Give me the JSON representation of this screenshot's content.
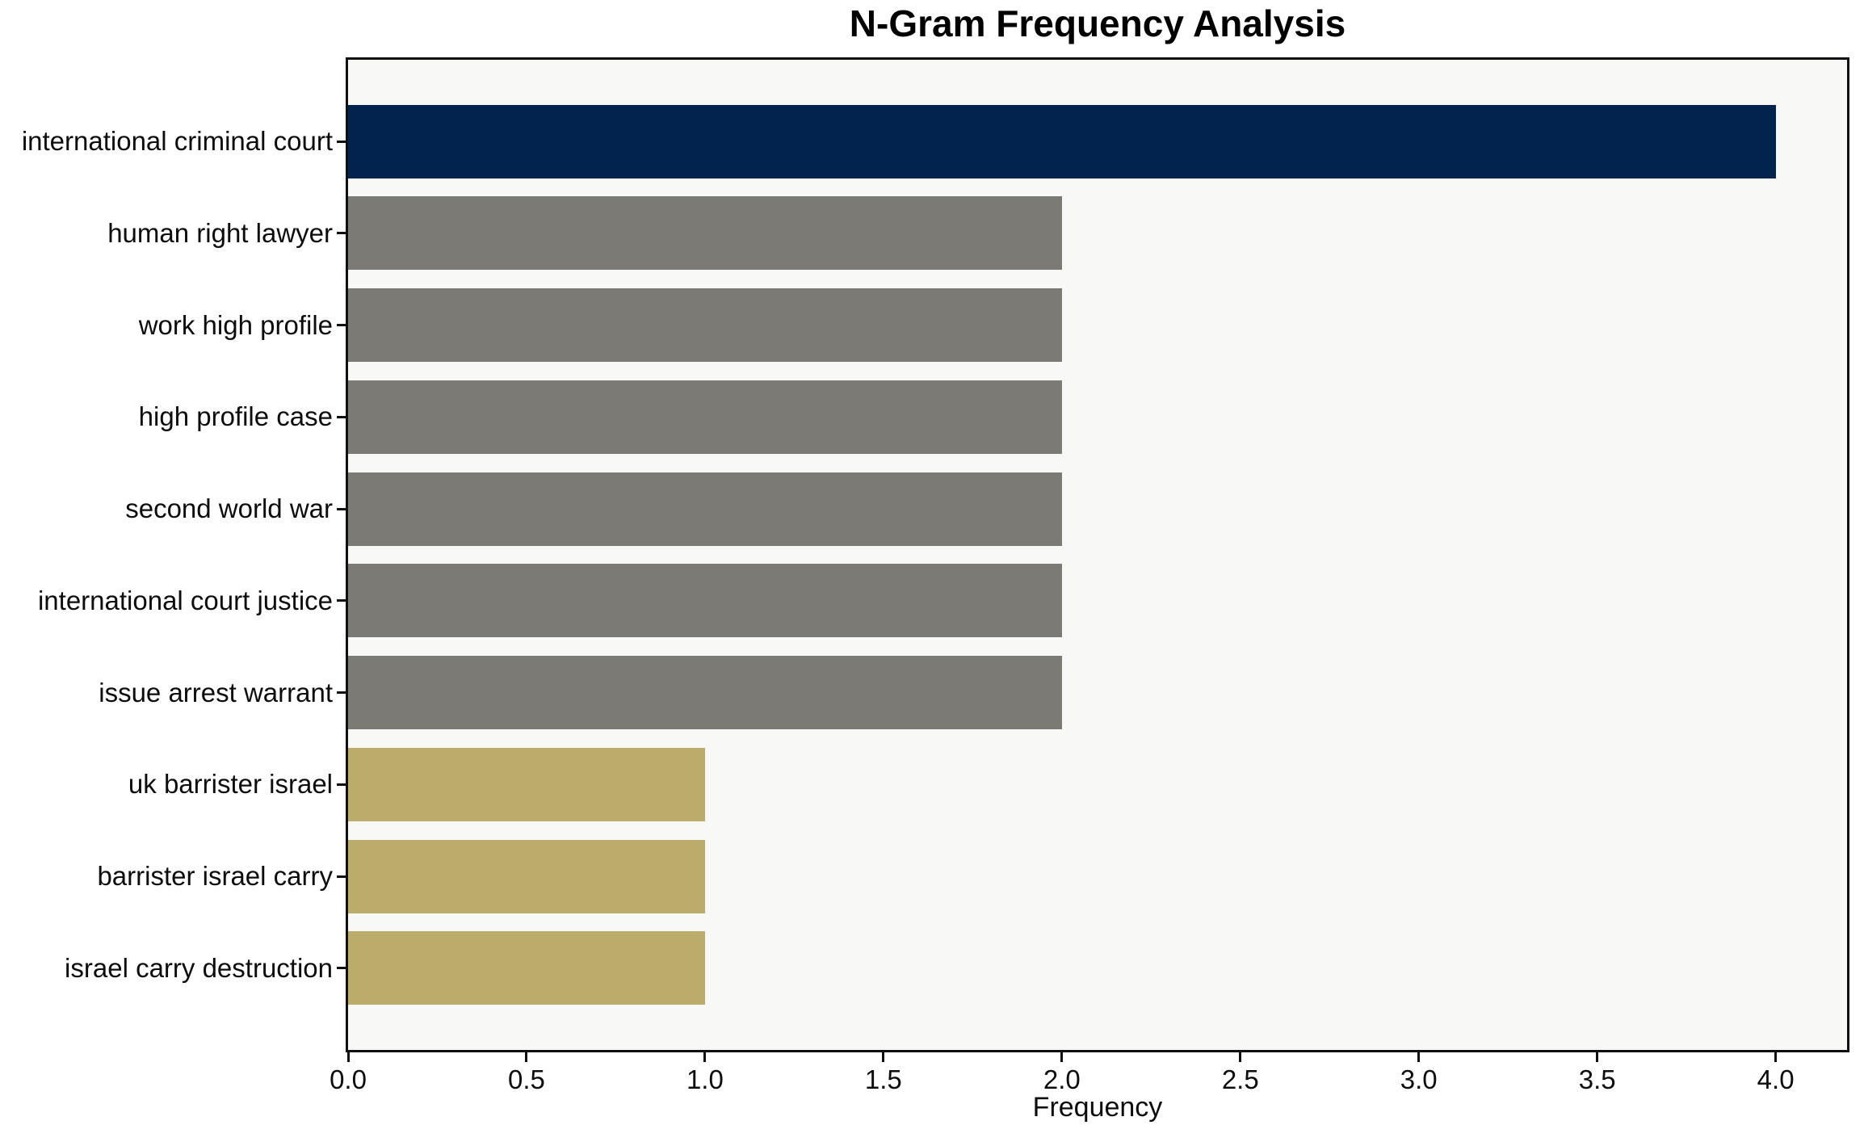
{
  "chart_data": {
    "type": "bar",
    "orientation": "horizontal",
    "title": "N-Gram Frequency Analysis",
    "xlabel": "Frequency",
    "ylabel": "",
    "categories": [
      "international criminal court",
      "human right lawyer",
      "work high profile",
      "high profile case",
      "second world war",
      "international court justice",
      "issue arrest warrant",
      "uk barrister israel",
      "barrister israel carry",
      "israel carry destruction"
    ],
    "values": [
      4,
      2,
      2,
      2,
      2,
      2,
      2,
      1,
      1,
      1
    ],
    "bar_colors": [
      "#02234d",
      "#7b7a75",
      "#7b7a75",
      "#7b7a75",
      "#7b7a75",
      "#7b7a75",
      "#7b7a75",
      "#bbac6b",
      "#bbac6b",
      "#bbac6b"
    ],
    "xlim": [
      0,
      4.2
    ],
    "x_ticks": [
      0,
      0.5,
      1,
      1.5,
      2,
      2.5,
      3,
      3.5,
      4
    ],
    "x_tick_labels": [
      "0.0",
      "0.5",
      "1.0",
      "1.5",
      "2.0",
      "2.5",
      "3.0",
      "3.5",
      "4.0"
    ],
    "bar_width_fraction": 0.8,
    "grid": false,
    "legend": null,
    "plot_background": "#f8f8f7",
    "outer_background": "#ffffff",
    "axis_color": "#101010",
    "text_color": "#0d0d0d"
  }
}
